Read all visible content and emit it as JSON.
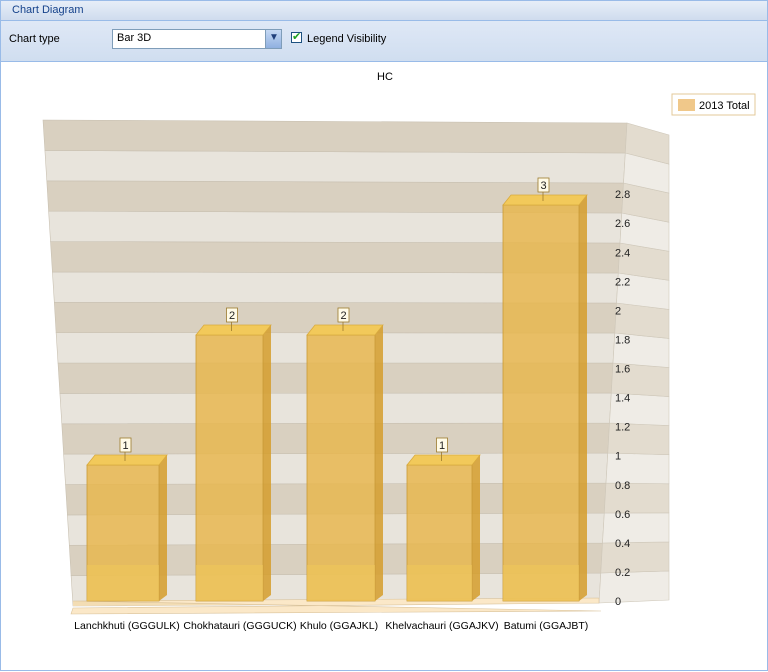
{
  "window": {
    "title": "Chart Diagram"
  },
  "toolbar": {
    "chart_type_label": "Chart type",
    "chart_type_value": "Bar 3D",
    "legend_visibility_label": "Legend Visibility",
    "legend_visibility_checked": true
  },
  "colors": {
    "bar_front": "#e8b64a",
    "bar_side": "#d59d2c",
    "bar_top": "#f2c95a",
    "wall_band_a": "#e8e4dc",
    "wall_band_b": "#d9d0c0",
    "floor": "#fbe8c8"
  },
  "chart_data": {
    "type": "bar",
    "title": "HC",
    "categories": [
      "Lanchkhuti (GGGULK)",
      "Chokhatauri (GGGUCK)",
      "Khulo (GGAJKL)",
      "Khelvachauri (GGAJKV)",
      "Batumi (GGAJBT)"
    ],
    "series": [
      {
        "name": "2013 Total",
        "values": [
          1,
          2,
          2,
          1,
          3
        ]
      }
    ],
    "data_labels": [
      "1",
      "2",
      "2",
      "1",
      "3"
    ],
    "y_ticks": [
      "0",
      "0.2",
      "0.4",
      "0.6",
      "0.8",
      "1",
      "1.2",
      "1.4",
      "1.6",
      "1.8",
      "2",
      "2.2",
      "2.4",
      "2.6",
      "2.8"
    ],
    "ylim": [
      0,
      3.2
    ],
    "grid": true,
    "legend_position": "top-right",
    "view": "3d"
  }
}
